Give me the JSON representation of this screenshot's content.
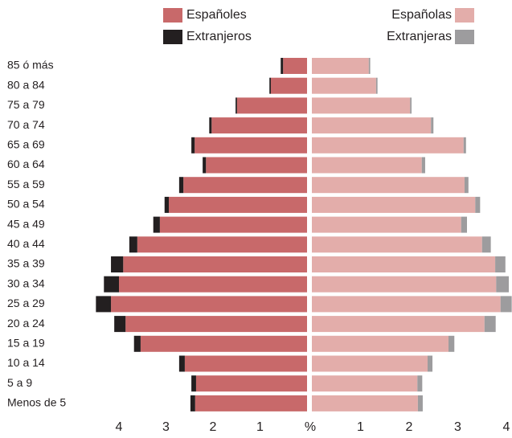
{
  "chart_data": {
    "type": "pyramid",
    "categories": [
      "85 ó más",
      "80 a 84",
      "75 a 79",
      "70 a 74",
      "65 a 69",
      "60 a 64",
      "55 a 59",
      "50 a 54",
      "45 a 49",
      "40 a 44",
      "35 a 39",
      "30 a 34",
      "25 a 29",
      "20 a 24",
      "15 a 19",
      "10 a 14",
      "5 a 9",
      "Menos de 5"
    ],
    "series": [
      {
        "name": "Españoles",
        "color": "#c8696a",
        "side": "left",
        "values": [
          0.51,
          0.77,
          1.49,
          2.03,
          2.39,
          2.15,
          2.63,
          2.94,
          3.13,
          3.61,
          3.91,
          4.0,
          4.17,
          3.86,
          3.54,
          2.6,
          2.36,
          2.38
        ]
      },
      {
        "name": "Extranjeros",
        "color": "#231f20",
        "side": "left",
        "values": [
          0.05,
          0.03,
          0.03,
          0.05,
          0.07,
          0.07,
          0.09,
          0.09,
          0.14,
          0.17,
          0.26,
          0.32,
          0.32,
          0.24,
          0.14,
          0.12,
          0.1,
          0.1
        ]
      },
      {
        "name": "Españolas",
        "color": "#e3adaa",
        "side": "right",
        "values": [
          1.17,
          1.32,
          2.02,
          2.45,
          3.12,
          2.26,
          3.14,
          3.36,
          3.07,
          3.5,
          3.77,
          3.79,
          3.88,
          3.55,
          2.81,
          2.38,
          2.17,
          2.18
        ]
      },
      {
        "name": "Extranjeras",
        "color": "#9d9c9e",
        "side": "right",
        "values": [
          0.03,
          0.03,
          0.03,
          0.05,
          0.05,
          0.07,
          0.08,
          0.1,
          0.12,
          0.18,
          0.21,
          0.26,
          0.23,
          0.23,
          0.12,
          0.1,
          0.1,
          0.1
        ]
      }
    ],
    "xlabel": "%",
    "xlim": [
      0,
      4.5
    ],
    "left_xticks": [
      4,
      3,
      2,
      1
    ],
    "right_xticks": [
      1,
      2,
      3,
      4
    ]
  }
}
